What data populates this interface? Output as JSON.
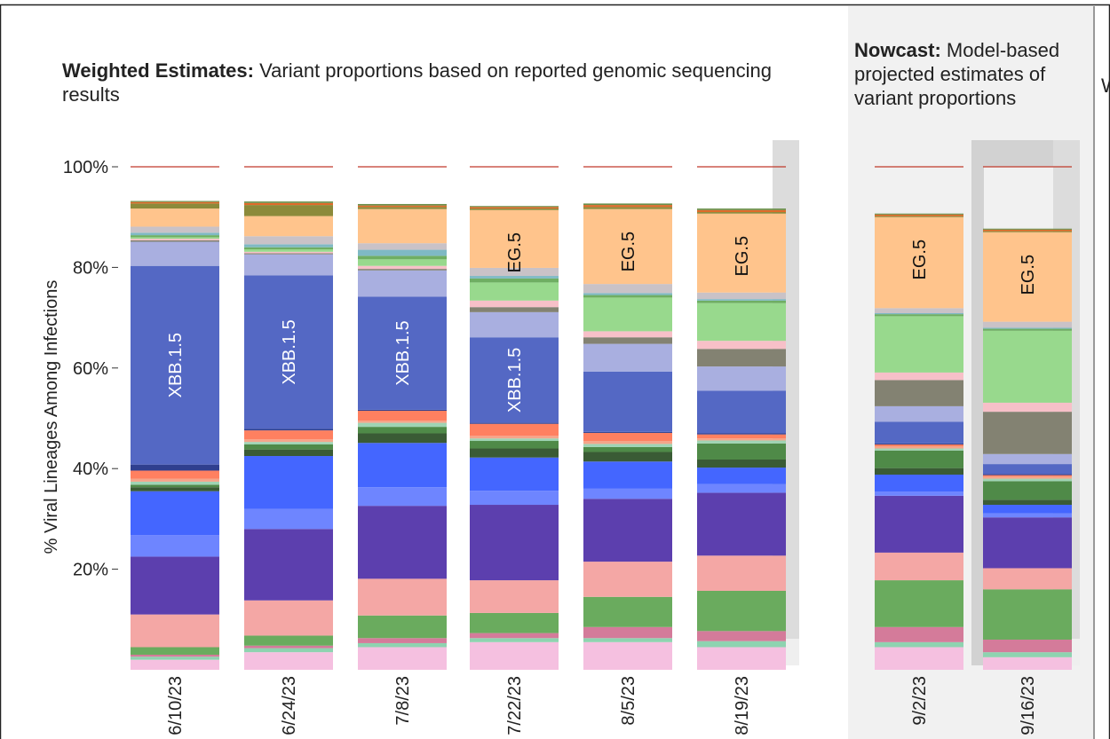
{
  "headers": {
    "weighted_bold": "Weighted Estimates:",
    "weighted_text": "Variant proportions based on reported genomic sequencing results",
    "nowcast_bold": "Nowcast:",
    "nowcast_text": "Model-based projected estimates of variant proportions",
    "cut_off_text": "W"
  },
  "chart_data": {
    "type": "bar",
    "stacked": true,
    "ylabel": "% Viral Lineages Among Infections",
    "ylim": [
      0,
      100
    ],
    "yticks": [
      "20%",
      "40%",
      "60%",
      "80%",
      "100%"
    ],
    "categories": [
      "6/10/23",
      "6/24/23",
      "7/8/23",
      "7/22/23",
      "8/5/23",
      "8/19/23",
      "9/2/23",
      "9/16/23"
    ],
    "nowcast_categories": [
      "9/2/23",
      "9/16/23"
    ],
    "bar_labels": [
      {
        "category": "6/10/23",
        "segment": "XBB.1.5",
        "text": "XBB.1.5",
        "color": "#ffffff"
      },
      {
        "category": "6/24/23",
        "segment": "XBB.1.5",
        "text": "XBB.1.5",
        "color": "#ffffff"
      },
      {
        "category": "7/8/23",
        "segment": "XBB.1.5",
        "text": "XBB.1.5",
        "color": "#ffffff"
      },
      {
        "category": "7/22/23",
        "segment": "XBB.1.5",
        "text": "XBB.1.5",
        "color": "#ffffff"
      },
      {
        "category": "7/22/23",
        "segment": "EG.5",
        "text": "EG.5",
        "color": "#111111"
      },
      {
        "category": "8/5/23",
        "segment": "EG.5",
        "text": "EG.5",
        "color": "#111111"
      },
      {
        "category": "8/19/23",
        "segment": "EG.5",
        "text": "EG.5",
        "color": "#111111"
      },
      {
        "category": "9/2/23",
        "segment": "EG.5",
        "text": "EG.5",
        "color": "#111111"
      },
      {
        "category": "9/16/23",
        "segment": "EG.5",
        "text": "EG.5",
        "color": "#111111"
      }
    ],
    "series": [
      {
        "key": "s01",
        "color": "#f5c0e0",
        "values": [
          2.0,
          3.5,
          4.5,
          5.5,
          5.5,
          4.5,
          4.5,
          2.5
        ]
      },
      {
        "key": "s02",
        "color": "#8ed3b0",
        "values": [
          0.6,
          0.8,
          0.8,
          0.8,
          0.8,
          1.2,
          1.0,
          1.0
        ]
      },
      {
        "key": "s03",
        "color": "#d47b9a",
        "values": [
          0.4,
          0.5,
          1.0,
          1.0,
          2.2,
          2.0,
          3.0,
          2.5
        ]
      },
      {
        "key": "s04",
        "color": "#6aab5e",
        "values": [
          1.5,
          2.0,
          4.5,
          4.0,
          6.0,
          8.0,
          9.3,
          10.0
        ]
      },
      {
        "key": "s05",
        "color": "#f4a7a5",
        "values": [
          6.5,
          7.0,
          7.3,
          6.5,
          7.0,
          7.0,
          5.5,
          4.2
        ]
      },
      {
        "key": "s06",
        "color": "#5c3fae",
        "values": [
          11.5,
          14.2,
          14.5,
          15.0,
          12.5,
          12.5,
          11.3,
          10.1
        ]
      },
      {
        "key": "s07",
        "color": "#6e85ff",
        "values": [
          4.3,
          4.0,
          3.7,
          2.8,
          2.0,
          1.7,
          0.8,
          0.8
        ]
      },
      {
        "key": "s08",
        "color": "#4466ff",
        "values": [
          8.7,
          10.5,
          8.8,
          6.6,
          5.4,
          3.3,
          3.4,
          1.7
        ]
      },
      {
        "key": "s09",
        "color": "#3a5b35",
        "values": [
          0.8,
          1.3,
          1.9,
          1.8,
          1.9,
          1.6,
          1.3,
          1.0
        ]
      },
      {
        "key": "s10",
        "color": "#4f8a48",
        "values": [
          0.5,
          1.0,
          1.3,
          1.5,
          1.0,
          3.2,
          3.5,
          3.7
        ]
      },
      {
        "key": "s11",
        "color": "#9fd4b4",
        "values": [
          0.6,
          0.5,
          0.8,
          0.5,
          0.6,
          0.6,
          0.4,
          0.5
        ]
      },
      {
        "key": "s12",
        "color": "#f5a58a",
        "values": [
          0.6,
          0.5,
          0.4,
          0.5,
          0.6,
          0.4,
          0.4,
          0.4
        ]
      },
      {
        "key": "s13",
        "color": "#ff8060",
        "values": [
          1.6,
          1.8,
          2.0,
          2.4,
          1.6,
          0.8,
          0.4,
          0.3
        ]
      },
      {
        "key": "s14",
        "color": "#2f3f8f",
        "values": [
          1.2,
          0.3,
          0.2,
          0.2,
          0.2,
          0.2,
          0.2,
          0.2
        ]
      },
      {
        "key": "XBB.1.5",
        "color": "#5468c4",
        "values": [
          39.5,
          30.5,
          22.5,
          17.0,
          12.0,
          8.5,
          4.3,
          2.0
        ]
      },
      {
        "key": "s16",
        "color": "#a9afe0",
        "values": [
          4.8,
          4.2,
          5.2,
          5.0,
          5.5,
          4.8,
          3.1,
          2.0
        ]
      },
      {
        "key": "s17",
        "color": "#838272",
        "values": [
          0.3,
          0.2,
          0.3,
          1.0,
          1.3,
          3.5,
          5.2,
          8.4
        ]
      },
      {
        "key": "s18",
        "color": "#f7c0c8",
        "values": [
          0.3,
          0.3,
          0.6,
          1.3,
          1.2,
          1.6,
          1.5,
          1.8
        ]
      },
      {
        "key": "s19",
        "color": "#98d98d",
        "values": [
          0.3,
          0.5,
          1.3,
          3.6,
          6.7,
          7.5,
          11.2,
          14.3
        ]
      },
      {
        "key": "s20",
        "color": "#6fae63",
        "values": [
          0.4,
          0.4,
          0.7,
          0.8,
          0.5,
          0.5,
          0.4,
          0.4
        ]
      },
      {
        "key": "s21",
        "color": "#7fb9c4",
        "values": [
          0.5,
          0.6,
          1.2,
          0.5,
          0.4,
          0.3,
          0.2,
          0.2
        ]
      },
      {
        "key": "s22",
        "color": "#c9c2c7",
        "values": [
          1.2,
          1.6,
          1.3,
          1.6,
          1.8,
          1.3,
          1.0,
          1.2
        ]
      },
      {
        "key": "EG.5",
        "color": "#ffc48c",
        "values": [
          3.6,
          4.0,
          6.8,
          11.5,
          14.9,
          15.7,
          18.1,
          17.8
        ]
      },
      {
        "key": "s24",
        "color": "#8c8a3a",
        "values": [
          1.0,
          2.2,
          0.4,
          0.3,
          0.4,
          0.3,
          0.2,
          0.2
        ]
      },
      {
        "key": "s25",
        "color": "#e06a2a",
        "values": [
          0.3,
          0.4,
          0.3,
          0.3,
          0.4,
          0.4,
          0.3,
          0.3
        ]
      },
      {
        "key": "s26",
        "color": "#6a8f4a",
        "values": [
          0.2,
          0.3,
          0.3,
          0.2,
          0.3,
          0.3,
          0.2,
          0.2
        ]
      }
    ]
  }
}
